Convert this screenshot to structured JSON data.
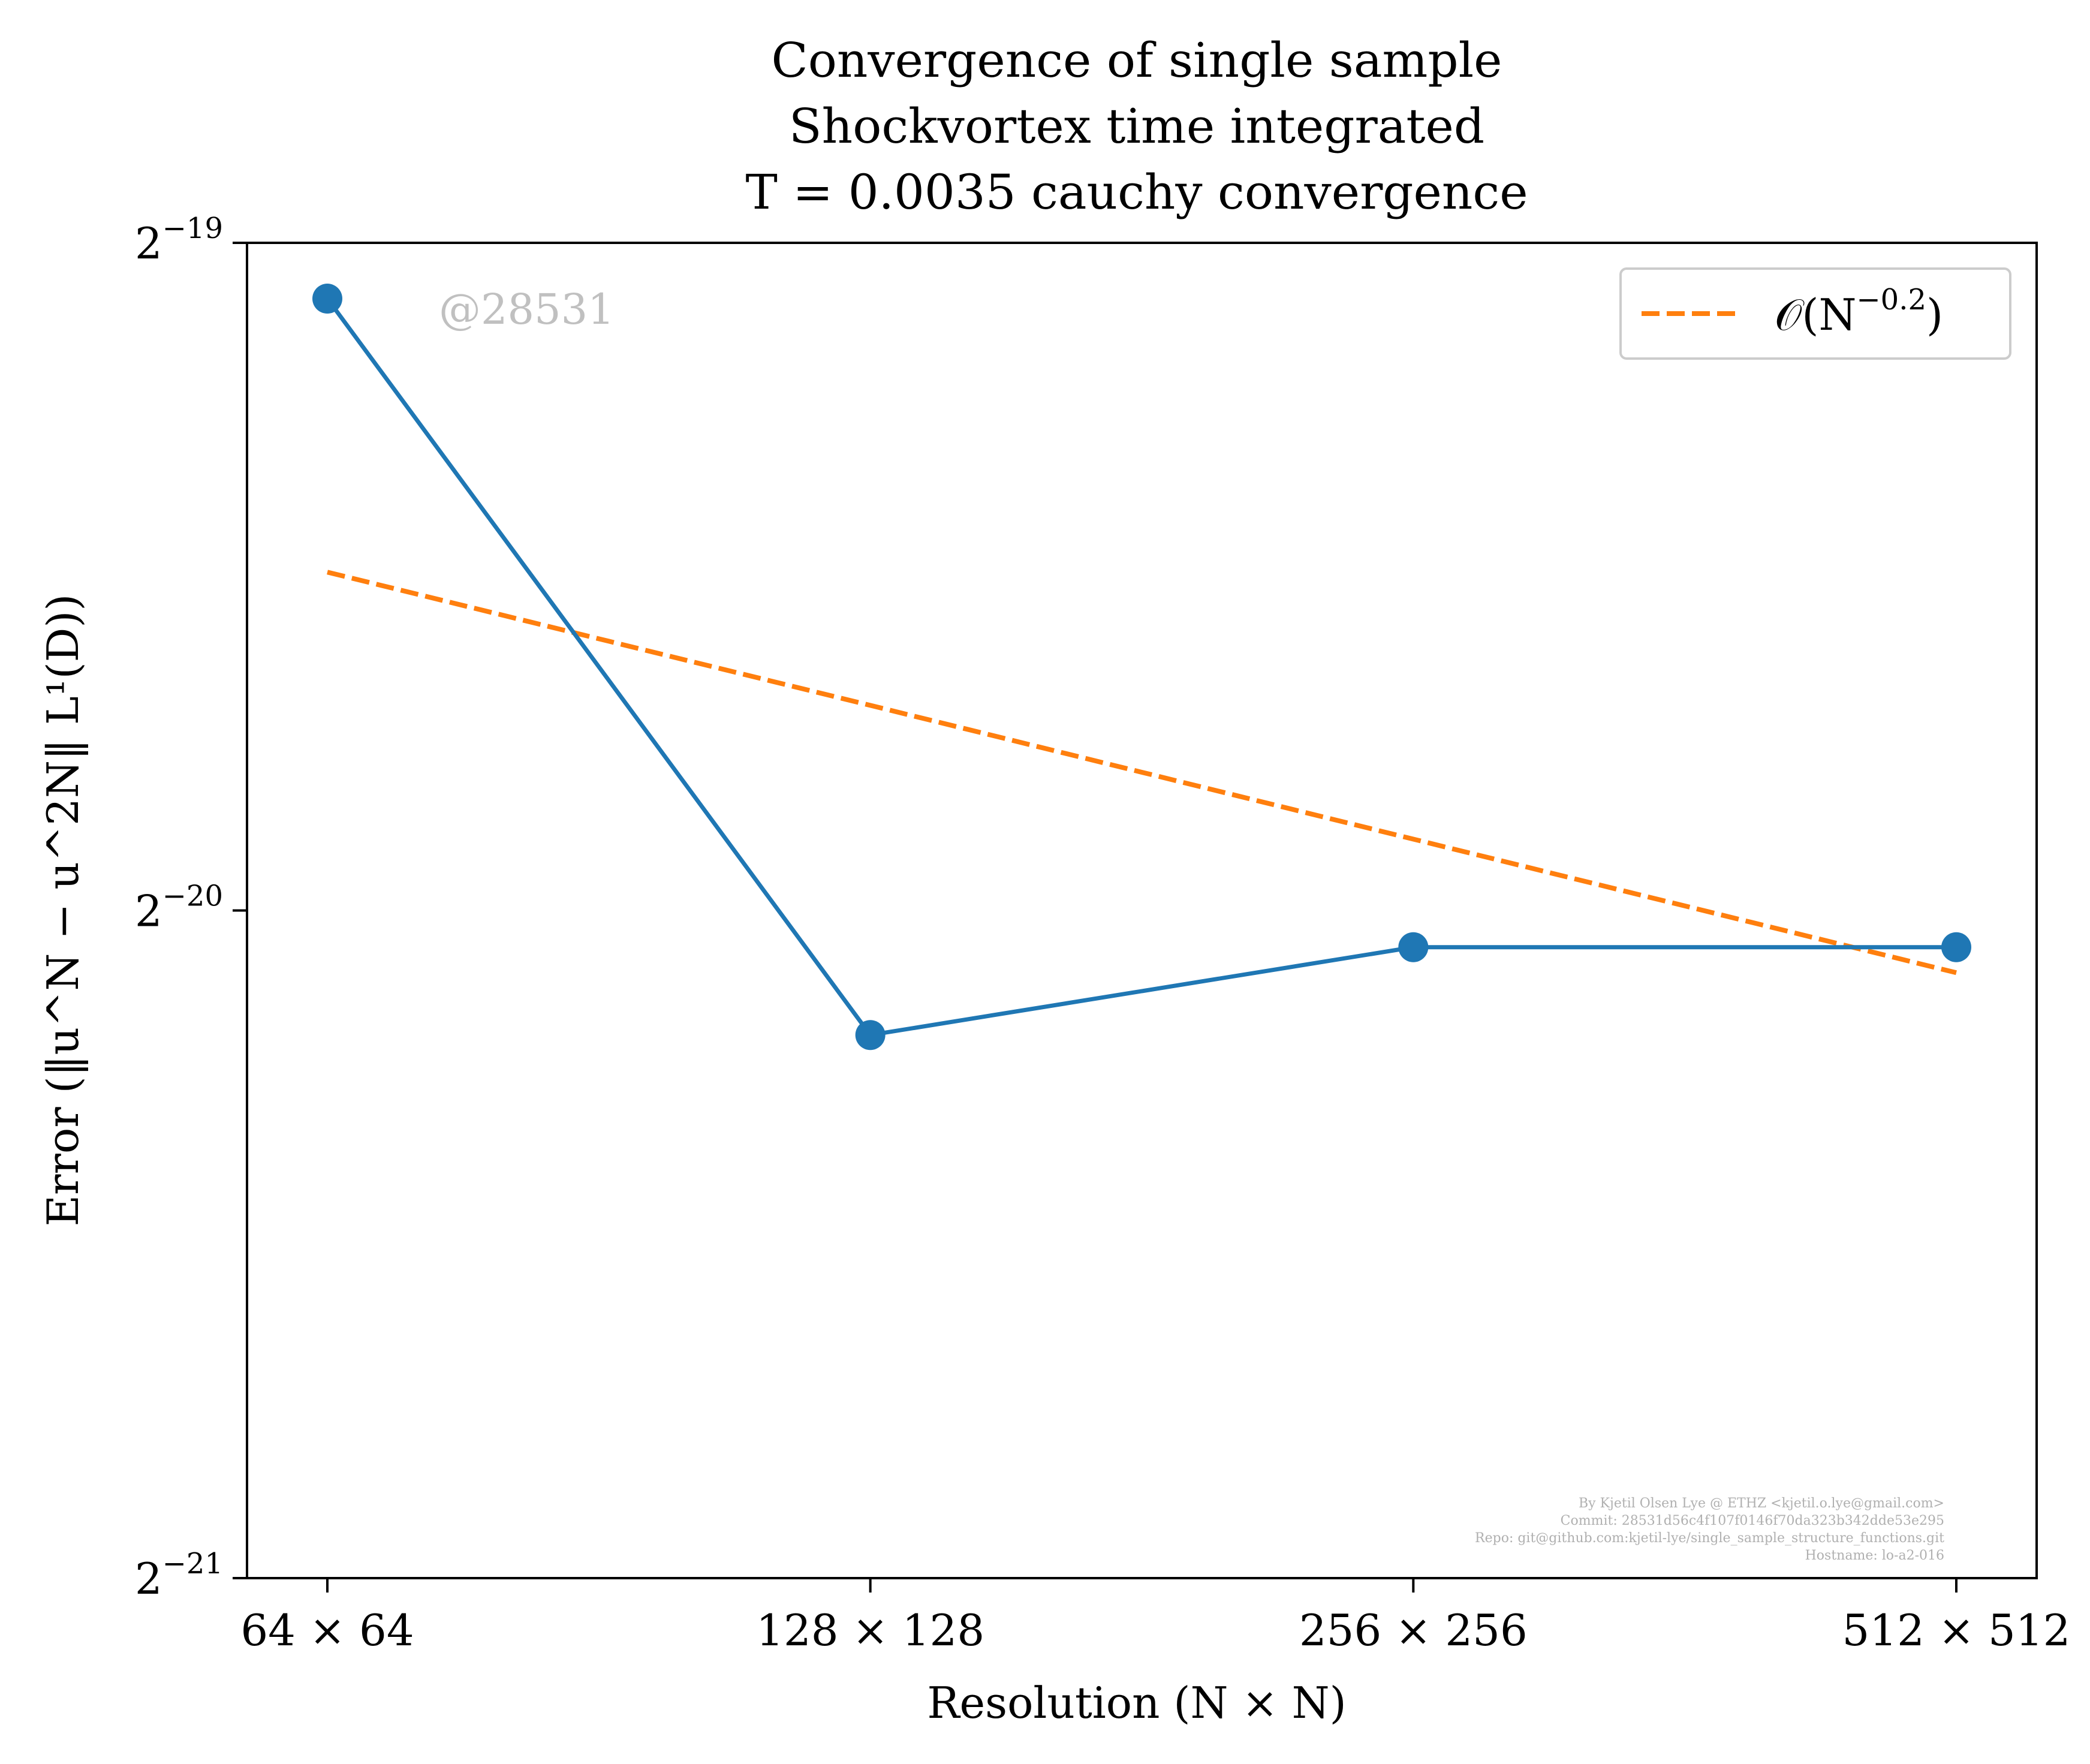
{
  "chart_data": {
    "type": "line",
    "title": [
      "Convergence of single sample",
      "Shockvortex time integrated",
      "T = 0.0035 cauchy convergence"
    ],
    "xlabel": "Resolution (N × N)",
    "ylabel": "Error (‖u^N − u^2N‖ L¹(D))",
    "categories": [
      "64 × 64",
      "128 × 128",
      "256 × 256",
      "512 × 512"
    ],
    "x": [
      64,
      128,
      256,
      512
    ],
    "x_scale": "log2",
    "y_scale": "log2",
    "ylim": [
      4.76837158203125e-07,
      1.9073486328125e-06
    ],
    "yticks": [
      {
        "base": "2",
        "exp": "−19"
      },
      {
        "base": "2",
        "exp": "−20"
      },
      {
        "base": "2",
        "exp": "−21"
      }
    ],
    "series": [
      {
        "name": "",
        "color": "#1f77b4",
        "style": "solid",
        "marker": "circle",
        "values": [
          1.8e-06,
          8.38e-07,
          9.18e-07,
          9.18e-07
        ]
      },
      {
        "name": "O(N^−0.2)",
        "color": "#ff7f0e",
        "style": "dashed",
        "marker": "none",
        "values": [
          1.355e-06,
          1.18e-06,
          1.027e-06,
          8.94e-07
        ]
      }
    ],
    "legend": {
      "placement": "top-right",
      "label": "𝒪(N",
      "label_sup": "−0.2",
      "label_close": ")"
    },
    "grid": false,
    "watermark": "@28531",
    "footer_lines": [
      "By Kjetil Olsen Lye @ ETHZ <kjetil.o.lye@gmail.com>",
      "Commit: 28531d56c4f107f0146f70da323b342dde53e295",
      "Repo: git@github.com:kjetil-lye/single_sample_structure_functions.git",
      "Hostname: lo-a2-016"
    ]
  }
}
